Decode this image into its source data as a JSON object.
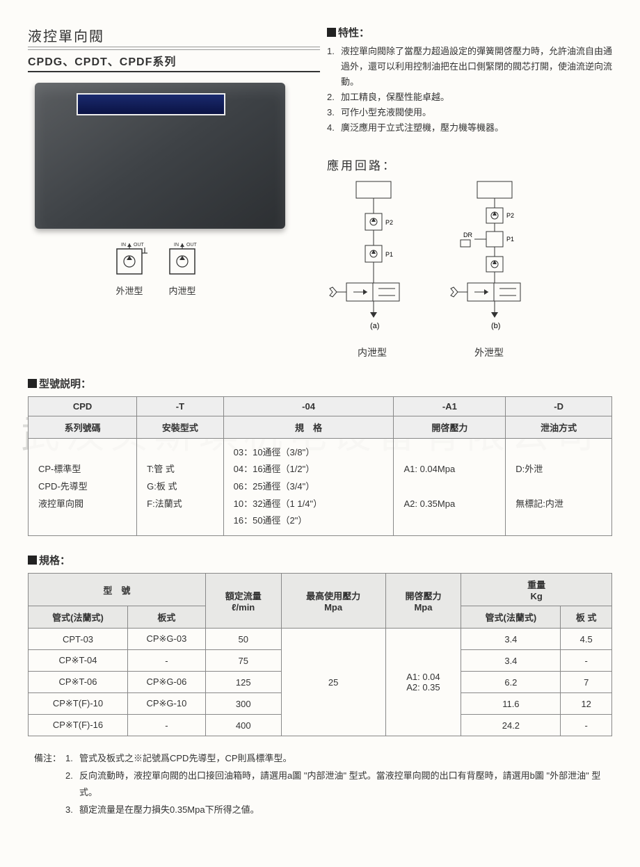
{
  "title": "液控單向閥",
  "subtitle": "CPDG、CPDT、CPDF系列",
  "watermark": "武汉贝斯琪机电设备有限公司",
  "features": {
    "heading": "特性：",
    "items": [
      "液控單向閥除了當壓力超過設定的彈簧開啓壓力時，允許油流自由通過外，還可以利用控制油把在出口側緊閉的閥芯打開，使油流逆向流動。",
      "加工精良，保壓性能卓越。",
      "可作小型充液閥使用。",
      "廣泛應用于立式注塑機，壓力機等機器。"
    ]
  },
  "symbols": {
    "external": "外泄型",
    "internal": "内泄型"
  },
  "circuit": {
    "heading": "應用回路：",
    "a_label": "(a)",
    "b_label": "(b)",
    "internal": "内泄型",
    "external": "外泄型"
  },
  "model_section": {
    "heading": "型號説明：",
    "headers": [
      "CPD",
      "-T",
      "-04",
      "-A1",
      "-D"
    ],
    "subheaders": [
      "系列號碼",
      "安裝型式",
      "規　格",
      "開啓壓力",
      "泄油方式"
    ],
    "cells": {
      "c1": "CP-標準型\nCPD-先導型\n液控單向閥",
      "c2": "T:管 式\nG:板 式\nF:法蘭式",
      "c3": "03：10通徑（3/8\"）\n04：16通徑（1/2\"）\n06：25通徑（3/4\"）\n10：32通徑（1 1/4\"）\n16：50通徑（2\"）",
      "c4": "A1: 0.04Mpa\n\nA2: 0.35Mpa",
      "c5": "D:外泄\n\n無標記:内泄"
    }
  },
  "spec_section": {
    "heading": "規格：",
    "col_groups": {
      "model": "型　號",
      "flow": "額定流量\nℓ/min",
      "max_pressure": "最高使用壓力\nMpa",
      "open_pressure": "開啓壓力\nMpa",
      "weight": "重量\nKg"
    },
    "sub_cols": {
      "pipe": "管式(法蘭式)",
      "plate": "板式",
      "pipe2": "管式(法蘭式)",
      "plate2": "板 式"
    },
    "max_pressure_val": "25",
    "open_pressure_val": "A1: 0.04\nA2: 0.35",
    "rows": [
      {
        "pipe": "CPT-03",
        "plate": "CP※G-03",
        "flow": "50",
        "w_pipe": "3.4",
        "w_plate": "4.5"
      },
      {
        "pipe": "CP※T-04",
        "plate": "-",
        "flow": "75",
        "w_pipe": "3.4",
        "w_plate": "-"
      },
      {
        "pipe": "CP※T-06",
        "plate": "CP※G-06",
        "flow": "125",
        "w_pipe": "6.2",
        "w_plate": "7"
      },
      {
        "pipe": "CP※T(F)-10",
        "plate": "CP※G-10",
        "flow": "300",
        "w_pipe": "11.6",
        "w_plate": "12"
      },
      {
        "pipe": "CP※T(F)-16",
        "plate": "-",
        "flow": "400",
        "w_pipe": "24.2",
        "w_plate": "-"
      }
    ]
  },
  "notes": {
    "label": "備注：",
    "items": [
      "管式及板式之※記號爲CPD先導型，CP則爲標準型。",
      "反向流動時，液控單向閥的出口接回油箱時，請選用a圖 \"内部泄油\" 型式。當液控單向閥的出口有背壓時，請選用b圖 \"外部泄油\" 型式。",
      "額定流量是在壓力損失0.35Mpa下所得之値。"
    ]
  }
}
